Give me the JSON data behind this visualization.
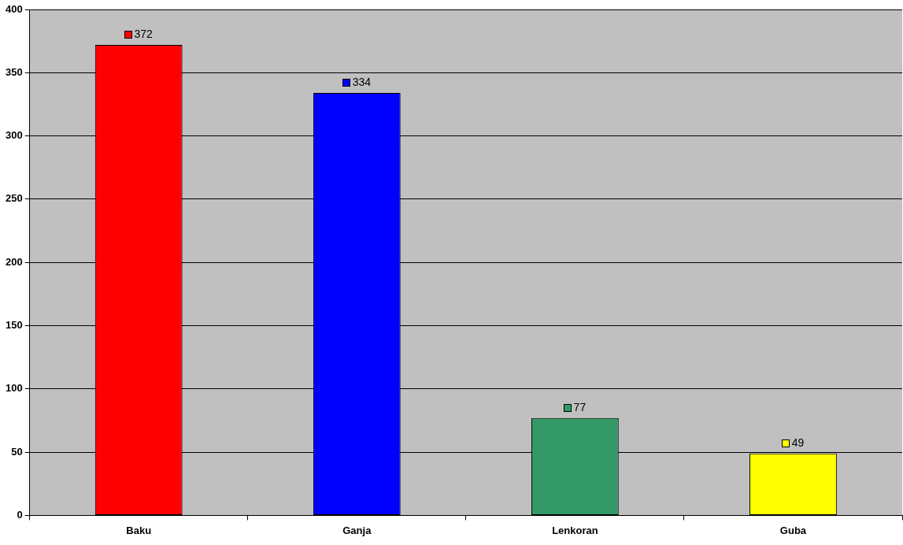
{
  "chart_data": {
    "type": "bar",
    "categories": [
      "Baku",
      "Ganja",
      "Lenkoran",
      "Guba"
    ],
    "values": [
      372,
      334,
      77,
      49
    ],
    "colors": [
      "#ff0000",
      "#0000ff",
      "#339966",
      "#ffff00"
    ],
    "ylim": [
      0,
      400
    ],
    "yticks": [
      0,
      50,
      100,
      150,
      200,
      250,
      300,
      350,
      400
    ],
    "grid": "y",
    "data_labels": true
  }
}
